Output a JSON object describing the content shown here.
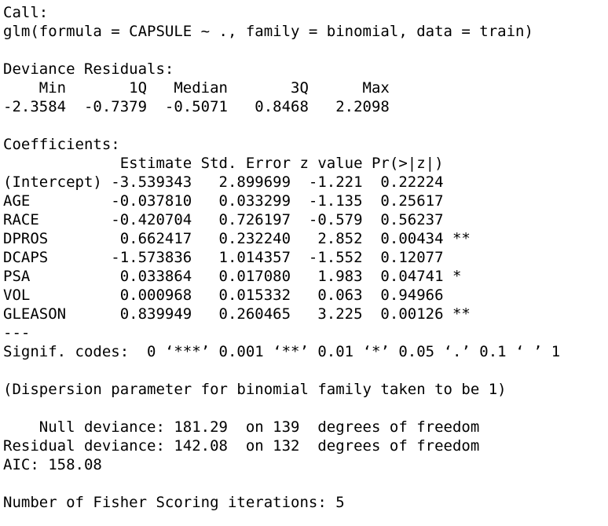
{
  "output": {
    "lines": [
      "Call:",
      "glm(formula = CAPSULE ~ ., family = binomial, data = train)",
      "",
      "Deviance Residuals:",
      "    Min       1Q   Median       3Q      Max",
      "-2.3584  -0.7379  -0.5071   0.8468   2.2098",
      "",
      "Coefficients:",
      "             Estimate Std. Error z value Pr(>|z|)",
      "(Intercept) -3.539343   2.899699  -1.221  0.22224",
      "AGE         -0.037810   0.033299  -1.135  0.25617",
      "RACE        -0.420704   0.726197  -0.579  0.56237",
      "DPROS        0.662417   0.232240   2.852  0.00434 **",
      "DCAPS       -1.573836   1.014357  -1.552  0.12077",
      "PSA          0.033864   0.017080   1.983  0.04741 *",
      "VOL          0.000968   0.015332   0.063  0.94966",
      "GLEASON      0.839949   0.260465   3.225  0.00126 **",
      "---",
      "Signif. codes:  0 ‘***’ 0.001 ‘**’ 0.01 ‘*’ 0.05 ‘.’ 0.1 ‘ ’ 1",
      "",
      "(Dispersion parameter for binomial family taken to be 1)",
      "",
      "    Null deviance: 181.29  on 139  degrees of freedom",
      "Residual deviance: 142.08  on 132  degrees of freedom",
      "AIC: 158.08",
      "",
      "Number of Fisher Scoring iterations: 5"
    ]
  }
}
